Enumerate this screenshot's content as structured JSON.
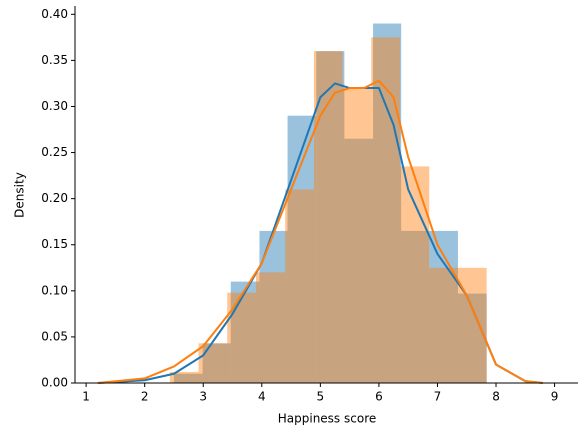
{
  "chart_data": {
    "type": "histogram",
    "x_label": "Happiness score",
    "y_label": "Density",
    "xlim": [
      0.81,
      9.4
    ],
    "ylim": [
      0,
      0.409
    ],
    "xticks": [
      1,
      2,
      3,
      4,
      5,
      6,
      7,
      8,
      9
    ],
    "yticks": [
      {
        "value": 0,
        "label": "0.00"
      },
      {
        "value": 0.05,
        "label": "0.05"
      },
      {
        "value": 0.1,
        "label": "0.10"
      },
      {
        "value": 0.15,
        "label": "0.15"
      },
      {
        "value": 0.2,
        "label": "0.20"
      },
      {
        "value": 0.25,
        "label": "0.25"
      },
      {
        "value": 0.3,
        "label": "0.30"
      },
      {
        "value": 0.35,
        "label": "0.35"
      },
      {
        "value": 0.4,
        "label": "0.40"
      }
    ],
    "grid": false,
    "histograms": [
      {
        "color": "#1f77b4",
        "opacity": 0.45,
        "bins": [
          2.5,
          2.99,
          3.47,
          3.96,
          4.44,
          4.93,
          5.41,
          5.9,
          6.38,
          6.87,
          7.35,
          7.84
        ],
        "values": [
          0.01,
          0.043,
          0.11,
          0.165,
          0.29,
          0.36,
          0.265,
          0.39,
          0.165,
          0.165,
          0.097
        ]
      },
      {
        "color": "#ff7f0e",
        "opacity": 0.45,
        "bins": [
          2.43,
          2.92,
          3.41,
          3.9,
          4.4,
          4.89,
          5.38,
          5.87,
          6.36,
          6.86,
          7.35,
          7.84
        ],
        "values": [
          0.012,
          0.043,
          0.098,
          0.12,
          0.21,
          0.36,
          0.32,
          0.375,
          0.235,
          0.125,
          0.125
        ]
      }
    ],
    "kde": [
      {
        "color": "#1f77b4",
        "x": [
          1.2,
          2,
          2.5,
          3,
          3.5,
          4,
          4.5,
          5,
          5.25,
          5.5,
          5.75,
          6,
          6.25,
          6.5,
          7,
          7.5,
          8,
          8.5,
          8.8
        ],
        "values": [
          0,
          0.003,
          0.01,
          0.03,
          0.075,
          0.13,
          0.22,
          0.31,
          0.325,
          0.32,
          0.32,
          0.32,
          0.28,
          0.21,
          0.14,
          0.095,
          0.02,
          0.002,
          0
        ]
      },
      {
        "color": "#ff7f0e",
        "x": [
          1.2,
          2,
          2.5,
          3,
          3.5,
          4,
          4.5,
          5,
          5.25,
          5.5,
          5.75,
          6,
          6.25,
          6.5,
          7,
          7.5,
          8,
          8.5,
          8.8
        ],
        "values": [
          0,
          0.005,
          0.018,
          0.04,
          0.08,
          0.13,
          0.21,
          0.29,
          0.315,
          0.32,
          0.32,
          0.328,
          0.31,
          0.245,
          0.15,
          0.095,
          0.02,
          0.002,
          0
        ]
      }
    ]
  }
}
